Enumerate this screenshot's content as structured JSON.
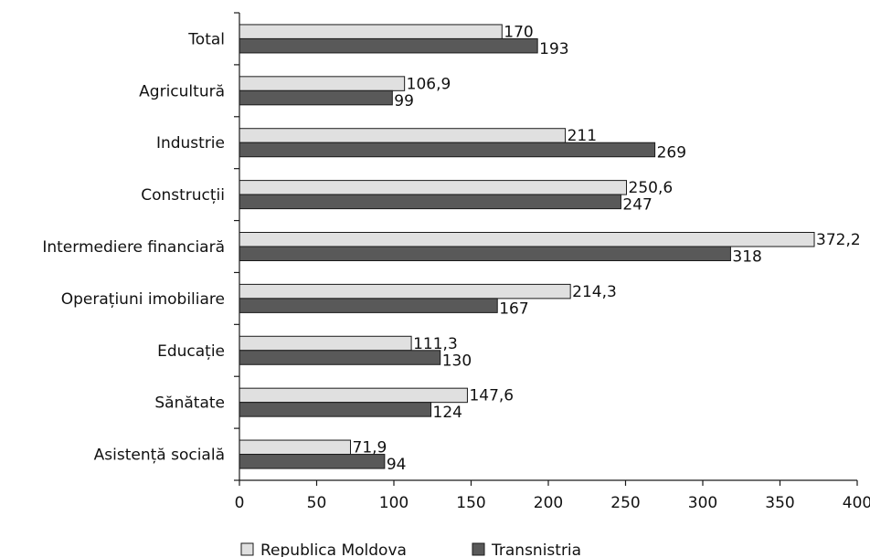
{
  "chart_data": {
    "type": "bar",
    "orientation": "horizontal",
    "categories": [
      "Total",
      "Agricultură",
      "Industrie",
      "Construcții",
      "Intermediere financiară",
      "Operațiuni imobiliare",
      "Educație",
      "Sănătate",
      "Asistență socială"
    ],
    "series": [
      {
        "name": "Republica Moldova",
        "values": [
          170,
          106.9,
          211,
          250.6,
          372.2,
          214.3,
          111.3,
          147.6,
          71.9
        ],
        "labels": [
          "170",
          "106,9",
          "211",
          "250,6",
          "372,2",
          "214,3",
          "111,3",
          "147,6",
          "71,9"
        ],
        "color": "#e0e0e0"
      },
      {
        "name": "Transnistria",
        "values": [
          193,
          99,
          269,
          247,
          318,
          167,
          130,
          124,
          94
        ],
        "labels": [
          "193",
          "99",
          "269",
          "247",
          "318",
          "167",
          "130",
          "124",
          "94"
        ],
        "color": "#595959"
      }
    ],
    "xlim": [
      0,
      400
    ],
    "x_ticks": [
      "0",
      "50",
      "100",
      "150",
      "200",
      "250",
      "300",
      "350",
      "400"
    ],
    "grid": false,
    "legend_position": "bottom"
  }
}
